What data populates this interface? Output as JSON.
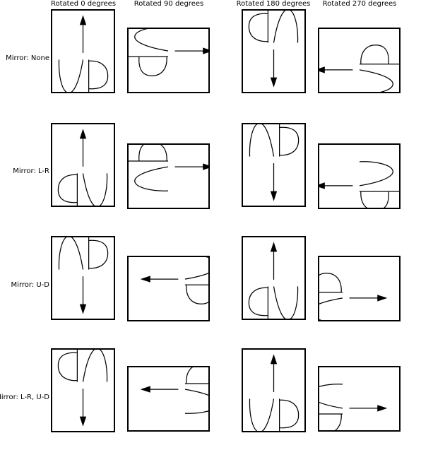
{
  "columns": [
    {
      "label": "Rotated 0 degrees",
      "rotation": 0
    },
    {
      "label": "Rotated 90 degrees",
      "rotation": 90
    },
    {
      "label": "Rotated 180 degrees",
      "rotation": 180
    },
    {
      "label": "Rotated 270 degrees",
      "rotation": 270
    }
  ],
  "rows": [
    {
      "label": "Mirror: None",
      "mirror": "none"
    },
    {
      "label": "Mirror: L-R",
      "mirror": "lr"
    },
    {
      "label": "Mirror: U-D",
      "mirror": "ud"
    },
    {
      "label": "Mirror: L-R, U-D",
      "mirror": "lr-ud"
    }
  ],
  "colors": {
    "stroke": "#000000",
    "background": "#ffffff"
  }
}
